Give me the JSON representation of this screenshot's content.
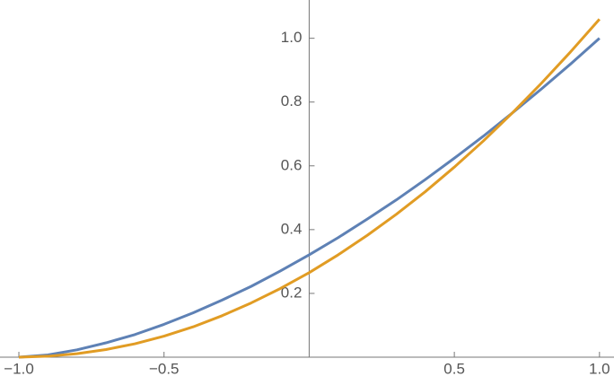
{
  "chart_data": {
    "type": "line",
    "x": [
      -1.0,
      -0.9,
      -0.8,
      -0.7,
      -0.6,
      -0.5,
      -0.4,
      -0.3,
      -0.2,
      -0.1,
      0.0,
      0.1,
      0.2,
      0.3,
      0.4,
      0.5,
      0.6,
      0.7,
      0.8,
      0.9,
      1.0
    ],
    "series": [
      {
        "color": "#5e81b5",
        "values": [
          0,
          0.007,
          0.023,
          0.045,
          0.071,
          0.103,
          0.139,
          0.179,
          0.222,
          0.27,
          0.321,
          0.375,
          0.433,
          0.493,
          0.557,
          0.624,
          0.693,
          0.766,
          0.841,
          0.919,
          1.0
        ]
      },
      {
        "color": "#e19c24",
        "values": [
          0,
          0.003,
          0.011,
          0.024,
          0.042,
          0.066,
          0.095,
          0.13,
          0.17,
          0.215,
          0.265,
          0.321,
          0.382,
          0.448,
          0.519,
          0.596,
          0.678,
          0.766,
          0.859,
          0.957,
          1.06
        ]
      }
    ],
    "xlim": [
      -1.065,
      1.05
    ],
    "ylim": [
      0,
      1.12
    ],
    "xticks": [
      {
        "value": -1.0,
        "label": "−1.0"
      },
      {
        "value": -0.5,
        "label": "−0.5"
      },
      0.5,
      {
        "value": 1.0,
        "label": "1.0"
      }
    ],
    "yticks": [
      0.2,
      0.4,
      0.6,
      0.8,
      {
        "value": 1.0,
        "label": "1.0"
      }
    ]
  }
}
